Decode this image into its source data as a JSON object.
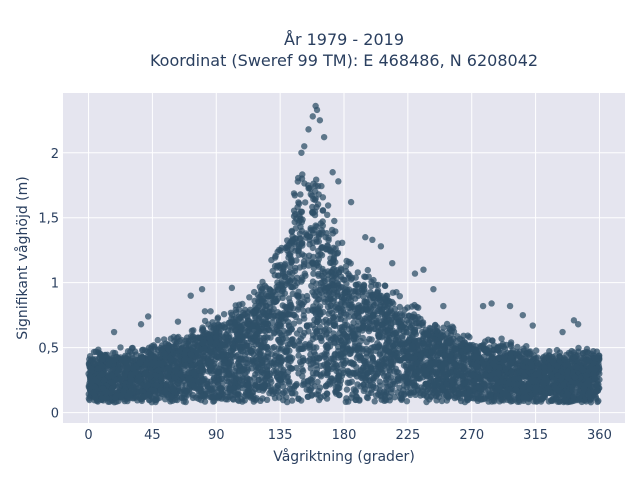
{
  "chart_data": {
    "type": "scatter",
    "title_line1": "År 1979 - 2019",
    "title_line2": "Koordinat (Sweref 99 TM): E 468486, N 6208042",
    "xlabel": "Vågriktning (grader)",
    "ylabel": "Signifikant våghöjd (m)",
    "xlim": [
      -18,
      378
    ],
    "ylim": [
      -0.08,
      2.46
    ],
    "x_ticks": [
      0,
      45,
      90,
      135,
      180,
      225,
      270,
      315,
      360
    ],
    "x_tick_labels": [
      "0",
      "45",
      "90",
      "135",
      "180",
      "225",
      "270",
      "315",
      "360"
    ],
    "y_ticks": [
      0,
      0.5,
      1,
      1.5,
      2
    ],
    "y_tick_labels": [
      "0",
      "0,5",
      "1",
      "1,5",
      "2"
    ],
    "grid": true,
    "background": "#e5e5ef",
    "marker_color": "#2f5068",
    "envelope": {
      "direction_deg": [
        0,
        20,
        45,
        60,
        75,
        90,
        105,
        120,
        130,
        140,
        145,
        150,
        155,
        160,
        165,
        170,
        180,
        190,
        200,
        215,
        225,
        240,
        255,
        270,
        285,
        300,
        315,
        330,
        345,
        360
      ],
      "upper_hs_m": [
        0.5,
        0.5,
        0.55,
        0.62,
        0.7,
        0.75,
        0.85,
        1.0,
        1.25,
        1.55,
        1.85,
        2.0,
        1.9,
        2.0,
        1.95,
        1.6,
        1.35,
        1.2,
        1.1,
        1.0,
        0.9,
        0.75,
        0.7,
        0.6,
        0.6,
        0.55,
        0.5,
        0.5,
        0.5,
        0.5
      ],
      "lower_hs_m": 0.08
    },
    "outliers": [
      {
        "x": 160,
        "y": 2.36
      },
      {
        "x": 161,
        "y": 2.33
      },
      {
        "x": 158,
        "y": 2.28
      },
      {
        "x": 163,
        "y": 2.25
      },
      {
        "x": 155,
        "y": 2.18
      },
      {
        "x": 166,
        "y": 2.12
      },
      {
        "x": 152,
        "y": 2.05
      },
      {
        "x": 150,
        "y": 2.0
      },
      {
        "x": 172,
        "y": 1.85
      },
      {
        "x": 176,
        "y": 1.78
      },
      {
        "x": 185,
        "y": 1.62
      },
      {
        "x": 195,
        "y": 1.35
      },
      {
        "x": 200,
        "y": 1.33
      },
      {
        "x": 206,
        "y": 1.28
      },
      {
        "x": 214,
        "y": 1.15
      },
      {
        "x": 230,
        "y": 1.07
      },
      {
        "x": 236,
        "y": 1.1
      },
      {
        "x": 243,
        "y": 0.95
      },
      {
        "x": 250,
        "y": 0.82
      },
      {
        "x": 278,
        "y": 0.82
      },
      {
        "x": 284,
        "y": 0.84
      },
      {
        "x": 297,
        "y": 0.82
      },
      {
        "x": 306,
        "y": 0.75
      },
      {
        "x": 313,
        "y": 0.67
      },
      {
        "x": 334,
        "y": 0.62
      },
      {
        "x": 342,
        "y": 0.71
      },
      {
        "x": 345,
        "y": 0.68
      },
      {
        "x": 80,
        "y": 0.95
      },
      {
        "x": 72,
        "y": 0.9
      },
      {
        "x": 82,
        "y": 0.78
      },
      {
        "x": 86,
        "y": 0.78
      },
      {
        "x": 101,
        "y": 0.96
      },
      {
        "x": 42,
        "y": 0.74
      },
      {
        "x": 37,
        "y": 0.68
      },
      {
        "x": 63,
        "y": 0.7
      },
      {
        "x": 18,
        "y": 0.62
      }
    ]
  }
}
